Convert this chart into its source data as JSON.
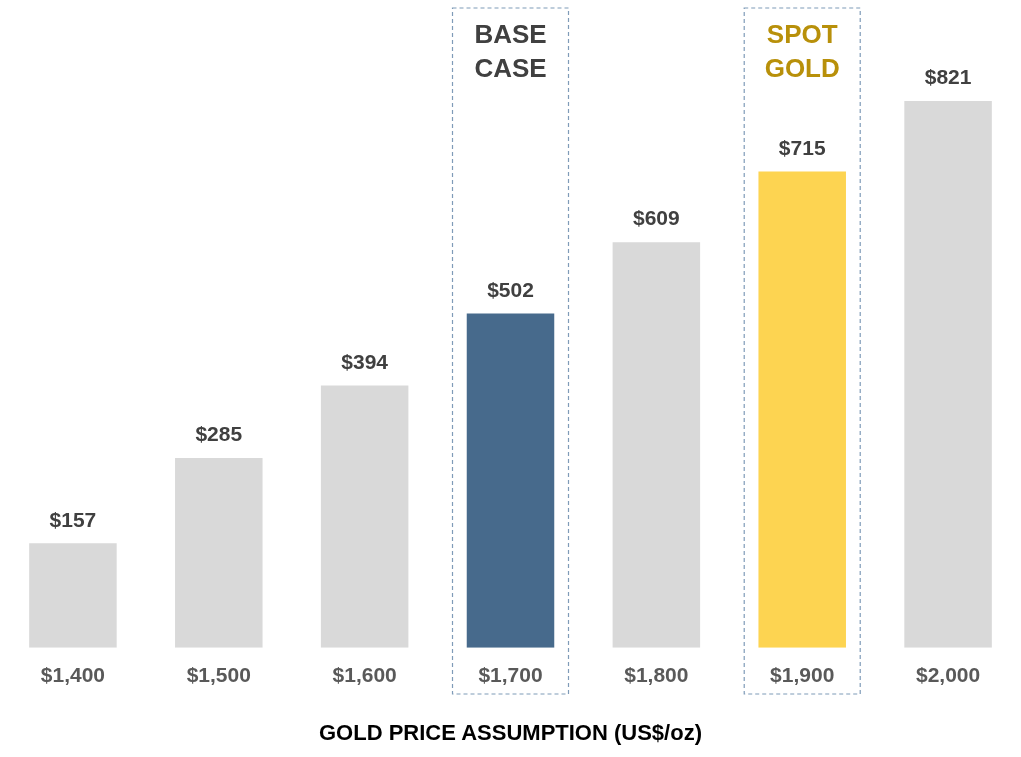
{
  "chart_data": {
    "type": "bar",
    "xlabel": "GOLD PRICE ASSUMPTION (US$/oz)",
    "categories": [
      "$1,400",
      "$1,500",
      "$1,600",
      "$1,700",
      "$1,800",
      "$1,900",
      "$2,000"
    ],
    "values": [
      157,
      285,
      394,
      502,
      609,
      715,
      821
    ],
    "value_labels": [
      "$157",
      "$285",
      "$394",
      "$502",
      "$609",
      "$715",
      "$821"
    ],
    "colors": [
      "#d9d9d9",
      "#d9d9d9",
      "#d9d9d9",
      "#476a8c",
      "#d9d9d9",
      "#fdd451",
      "#d9d9d9"
    ],
    "annotations": [
      "BASE CASE",
      "SPOT GOLD"
    ],
    "grid": false,
    "legend": false
  }
}
